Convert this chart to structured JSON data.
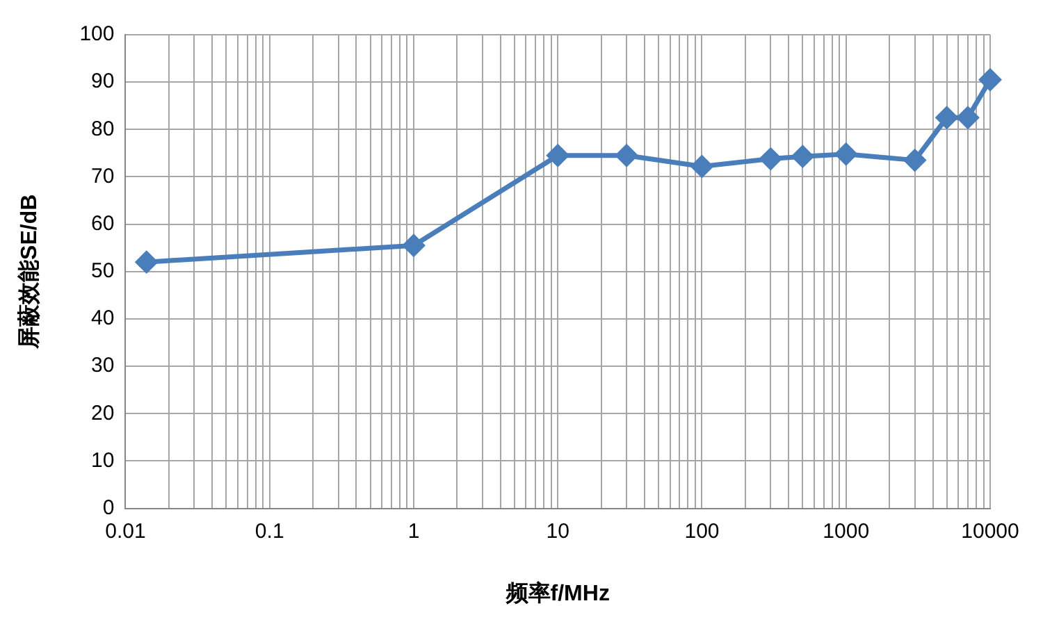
{
  "chart_data": {
    "type": "line",
    "xlabel": "频率f/MHz",
    "ylabel": "屏蔽效能SE/dB",
    "log": "x",
    "x": [
      0.014,
      1,
      10,
      30,
      100,
      300,
      500,
      1000,
      3000,
      5000,
      7000,
      10000
    ],
    "series": [
      {
        "color": "#4a7ebb",
        "values": [
          52,
          55.5,
          74.5,
          74.5,
          72.2,
          73.8,
          74.3,
          74.8,
          73.5,
          82.5,
          82.5,
          90.5
        ]
      }
    ],
    "xlim": [
      0.01,
      10000
    ],
    "ylim": [
      0,
      100
    ],
    "xticks": [
      0.01,
      {
        "value": 0.02,
        "label": null
      },
      {
        "value": 0.03,
        "label": null
      },
      {
        "value": 0.04,
        "label": null
      },
      {
        "value": 0.05,
        "label": null
      },
      {
        "value": 0.06,
        "label": null
      },
      {
        "value": 0.07,
        "label": null
      },
      {
        "value": 0.08,
        "label": null
      },
      {
        "value": 0.09,
        "label": null
      },
      0.1,
      {
        "value": 0.2,
        "label": null
      },
      {
        "value": 0.3,
        "label": null
      },
      {
        "value": 0.4,
        "label": null
      },
      {
        "value": 0.5,
        "label": null
      },
      {
        "value": 0.6,
        "label": null
      },
      {
        "value": 0.7,
        "label": null
      },
      {
        "value": 0.8,
        "label": null
      },
      {
        "value": 0.9,
        "label": null
      },
      1,
      {
        "value": 2,
        "label": null
      },
      {
        "value": 3,
        "label": null
      },
      {
        "value": 4,
        "label": null
      },
      {
        "value": 5,
        "label": null
      },
      {
        "value": 6,
        "label": null
      },
      {
        "value": 7,
        "label": null
      },
      {
        "value": 8,
        "label": null
      },
      {
        "value": 9,
        "label": null
      },
      10,
      {
        "value": 20,
        "label": null
      },
      {
        "value": 30,
        "label": null
      },
      {
        "value": 40,
        "label": null
      },
      {
        "value": 50,
        "label": null
      },
      {
        "value": 60,
        "label": null
      },
      {
        "value": 70,
        "label": null
      },
      {
        "value": 80,
        "label": null
      },
      {
        "value": 90,
        "label": null
      },
      100,
      {
        "value": 200,
        "label": null
      },
      {
        "value": 300,
        "label": null
      },
      {
        "value": 400,
        "label": null
      },
      {
        "value": 500,
        "label": null
      },
      {
        "value": 600,
        "label": null
      },
      {
        "value": 700,
        "label": null
      },
      {
        "value": 800,
        "label": null
      },
      {
        "value": 900,
        "label": null
      },
      1000,
      {
        "value": 2000,
        "label": null
      },
      {
        "value": 3000,
        "label": null
      },
      {
        "value": 4000,
        "label": null
      },
      {
        "value": 5000,
        "label": null
      },
      {
        "value": 6000,
        "label": null
      },
      {
        "value": 7000,
        "label": null
      },
      {
        "value": 8000,
        "label": null
      },
      {
        "value": 9000,
        "label": null
      },
      10000
    ],
    "yticks": [
      0,
      10,
      20,
      30,
      40,
      50,
      60,
      70,
      80,
      90,
      100
    ],
    "grid": true,
    "legend": false,
    "marker": "diamond",
    "line_style": "solid"
  }
}
